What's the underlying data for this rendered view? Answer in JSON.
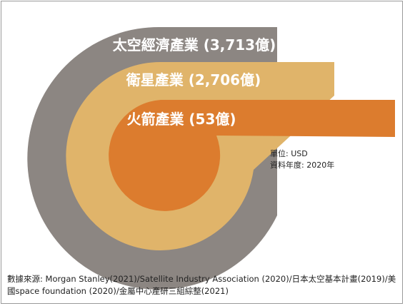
{
  "bands": [
    {
      "label": "太空經濟產業 (3,713億)",
      "color": "#8c8682"
    },
    {
      "label": "衛星產業 (2,706億)",
      "color": "#e0b46a"
    },
    {
      "label": "火箭產業 (53億)",
      "color": "#dc7c2e"
    }
  ],
  "unit_line": "單位: USD",
  "year_line": "資料年度: 2020年",
  "source_text": "數據來源: Morgan Stanley(2021)/Satellite Industry Association (2020)/日本太空基本計畫(2019)/美國space foundation (2020)/金屬中心產研三組綜整(2021)"
}
